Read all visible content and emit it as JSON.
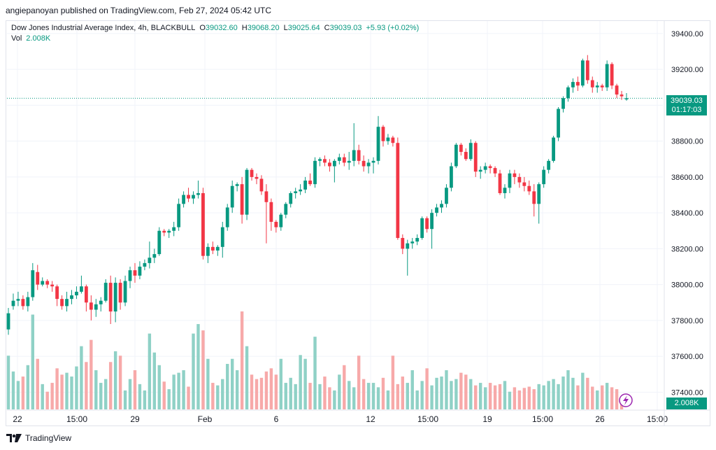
{
  "header": {
    "publish_line": "angiepanoyan published on TradingView.com, Feb 27, 2024 05:42 UTC"
  },
  "legend": {
    "symbol": "Dow Jones Industrial Average Index, 4h, BLACKBULL",
    "open_label": "O",
    "open": "39032.60",
    "high_label": "H",
    "high": "39068.20",
    "low_label": "L",
    "low": "39025.64",
    "close_label": "C",
    "close": "39039.03",
    "change": "+5.93 (+0.02%)",
    "vol_label": "Vol",
    "vol_value": "2.008K"
  },
  "price_axis": {
    "ticks": [
      "39400.00",
      "39200.00",
      "39000.00",
      "38800.00",
      "38600.00",
      "38400.00",
      "38200.00",
      "38000.00",
      "37800.00",
      "37600.00",
      "37400.00"
    ],
    "last_price": "39039.03",
    "countdown": "01:17:03",
    "volume_tag": "2.008K"
  },
  "time_axis": {
    "labels": [
      "22",
      "15:00",
      "29",
      "Feb",
      "6",
      "12",
      "15:00",
      "19",
      "15:00",
      "26",
      "15:00"
    ]
  },
  "footer": {
    "brand": "TradingView"
  },
  "colors": {
    "up": "#089981",
    "down": "#f23645",
    "up_vol": "#8fd1c6",
    "down_vol": "#f7a9a9",
    "grid": "#f0f3fa"
  },
  "chart_data": {
    "type": "candlestick",
    "title": "Dow Jones Industrial Average Index, 4h, BLACKBULL",
    "ylim": [
      37300,
      39470
    ],
    "y_ticks": [
      37400,
      37600,
      37800,
      38000,
      38200,
      38400,
      38600,
      38800,
      39000,
      39200,
      39400
    ],
    "x_labels": [
      "22",
      "15:00",
      "29",
      "Feb",
      "6",
      "12",
      "15:00",
      "19",
      "15:00",
      "26",
      "15:00"
    ],
    "last_price": 39039.03,
    "candles": [
      [
        37750,
        37870,
        37720,
        37840
      ],
      [
        37880,
        37950,
        37860,
        37910
      ],
      [
        37910,
        37960,
        37880,
        37920
      ],
      [
        37920,
        37940,
        37860,
        37880
      ],
      [
        37880,
        37960,
        37850,
        37930
      ],
      [
        37930,
        38120,
        37910,
        38080
      ],
      [
        38070,
        38110,
        37970,
        38000
      ],
      [
        38000,
        38040,
        37990,
        38020
      ],
      [
        38020,
        38030,
        37980,
        38000
      ],
      [
        38000,
        38020,
        37960,
        37990
      ],
      [
        37990,
        38000,
        37880,
        37920
      ],
      [
        37920,
        37940,
        37860,
        37880
      ],
      [
        37880,
        37960,
        37850,
        37920
      ],
      [
        37920,
        37970,
        37890,
        37940
      ],
      [
        37940,
        37990,
        37920,
        37960
      ],
      [
        37960,
        38050,
        37950,
        37990
      ],
      [
        37990,
        38000,
        37850,
        37900
      ],
      [
        37900,
        37940,
        37800,
        37860
      ],
      [
        37860,
        37920,
        37820,
        37890
      ],
      [
        37890,
        37930,
        37850,
        37910
      ],
      [
        37910,
        38030,
        37900,
        38010
      ],
      [
        38010,
        38050,
        37780,
        37850
      ],
      [
        37850,
        38040,
        37790,
        38010
      ],
      [
        38010,
        38030,
        37860,
        37900
      ],
      [
        37900,
        38050,
        37880,
        38020
      ],
      [
        38020,
        38100,
        37980,
        38080
      ],
      [
        38080,
        38120,
        38010,
        38050
      ],
      [
        38050,
        38130,
        38030,
        38100
      ],
      [
        38100,
        38140,
        38080,
        38120
      ],
      [
        38120,
        38240,
        38090,
        38150
      ],
      [
        38150,
        38200,
        38120,
        38170
      ],
      [
        38170,
        38320,
        38160,
        38300
      ],
      [
        38300,
        38310,
        38270,
        38290
      ],
      [
        38290,
        38310,
        38260,
        38300
      ],
      [
        38300,
        38350,
        38270,
        38320
      ],
      [
        38320,
        38480,
        38300,
        38450
      ],
      [
        38450,
        38520,
        38430,
        38500
      ],
      [
        38500,
        38540,
        38460,
        38480
      ],
      [
        38480,
        38520,
        38450,
        38500
      ],
      [
        38500,
        38580,
        38480,
        38510
      ],
      [
        38510,
        38540,
        38140,
        38160
      ],
      [
        38160,
        38230,
        38120,
        38210
      ],
      [
        38210,
        38240,
        38170,
        38190
      ],
      [
        38190,
        38220,
        38160,
        38210
      ],
      [
        38210,
        38350,
        38150,
        38320
      ],
      [
        38320,
        38450,
        38300,
        38430
      ],
      [
        38430,
        38580,
        38400,
        38550
      ],
      [
        38550,
        38570,
        38520,
        38560
      ],
      [
        38560,
        38600,
        38340,
        38390
      ],
      [
        38390,
        38650,
        38360,
        38640
      ],
      [
        38640,
        38650,
        38580,
        38600
      ],
      [
        38600,
        38620,
        38560,
        38590
      ],
      [
        38590,
        38610,
        38500,
        38520
      ],
      [
        38520,
        38560,
        38230,
        38460
      ],
      [
        38460,
        38480,
        38300,
        38350
      ],
      [
        38350,
        38360,
        38290,
        38320
      ],
      [
        38320,
        38400,
        38300,
        38390
      ],
      [
        38390,
        38460,
        38370,
        38450
      ],
      [
        38450,
        38520,
        38430,
        38510
      ],
      [
        38510,
        38540,
        38480,
        38520
      ],
      [
        38520,
        38560,
        38500,
        38530
      ],
      [
        38530,
        38600,
        38510,
        38580
      ],
      [
        38580,
        38620,
        38550,
        38560
      ],
      [
        38560,
        38710,
        38540,
        38690
      ],
      [
        38690,
        38710,
        38660,
        38700
      ],
      [
        38700,
        38720,
        38660,
        38680
      ],
      [
        38680,
        38700,
        38630,
        38660
      ],
      [
        38660,
        38700,
        38570,
        38690
      ],
      [
        38690,
        38730,
        38670,
        38710
      ],
      [
        38710,
        38730,
        38660,
        38680
      ],
      [
        38680,
        38740,
        38640,
        38690
      ],
      [
        38690,
        38900,
        38660,
        38750
      ],
      [
        38750,
        38780,
        38670,
        38690
      ],
      [
        38690,
        38720,
        38630,
        38660
      ],
      [
        38660,
        38700,
        38620,
        38680
      ],
      [
        38680,
        38710,
        38620,
        38690
      ],
      [
        38690,
        38940,
        38670,
        38880
      ],
      [
        38880,
        38890,
        38770,
        38800
      ],
      [
        38800,
        38840,
        38780,
        38820
      ],
      [
        38820,
        38830,
        38770,
        38790
      ],
      [
        38790,
        38820,
        38250,
        38260
      ],
      [
        38260,
        38280,
        38170,
        38200
      ],
      [
        38200,
        38250,
        38050,
        38230
      ],
      [
        38230,
        38260,
        38200,
        38240
      ],
      [
        38240,
        38280,
        38220,
        38260
      ],
      [
        38260,
        38380,
        38250,
        38370
      ],
      [
        38370,
        38380,
        38290,
        38310
      ],
      [
        38310,
        38420,
        38200,
        38400
      ],
      [
        38400,
        38450,
        38380,
        38430
      ],
      [
        38430,
        38470,
        38400,
        38450
      ],
      [
        38450,
        38560,
        38430,
        38540
      ],
      [
        38540,
        38680,
        38520,
        38660
      ],
      [
        38660,
        38790,
        38650,
        38780
      ],
      [
        38780,
        38790,
        38720,
        38740
      ],
      [
        38740,
        38760,
        38690,
        38700
      ],
      [
        38700,
        38810,
        38690,
        38790
      ],
      [
        38790,
        38800,
        38600,
        38630
      ],
      [
        38630,
        38660,
        38590,
        38640
      ],
      [
        38640,
        38680,
        38620,
        38660
      ],
      [
        38660,
        38670,
        38620,
        38650
      ],
      [
        38650,
        38660,
        38600,
        38620
      ],
      [
        38620,
        38640,
        38500,
        38510
      ],
      [
        38510,
        38560,
        38480,
        38540
      ],
      [
        38540,
        38640,
        38510,
        38620
      ],
      [
        38620,
        38640,
        38560,
        38600
      ],
      [
        38600,
        38620,
        38540,
        38570
      ],
      [
        38570,
        38600,
        38520,
        38550
      ],
      [
        38550,
        38580,
        38500,
        38520
      ],
      [
        38520,
        38560,
        38380,
        38450
      ],
      [
        38450,
        38570,
        38340,
        38560
      ],
      [
        38560,
        38660,
        38540,
        38640
      ],
      [
        38640,
        38700,
        38620,
        38690
      ],
      [
        38690,
        38830,
        38680,
        38820
      ],
      [
        38820,
        38990,
        38800,
        38980
      ],
      [
        38980,
        39050,
        38960,
        39040
      ],
      [
        39040,
        39110,
        39020,
        39100
      ],
      [
        39100,
        39150,
        39070,
        39130
      ],
      [
        39130,
        39160,
        39080,
        39110
      ],
      [
        39110,
        39260,
        39100,
        39250
      ],
      [
        39250,
        39280,
        39120,
        39140
      ],
      [
        39140,
        39160,
        39070,
        39100
      ],
      [
        39100,
        39130,
        39070,
        39110
      ],
      [
        39110,
        39120,
        39080,
        39100
      ],
      [
        39100,
        39250,
        39080,
        39230
      ],
      [
        39230,
        39240,
        39090,
        39110
      ],
      [
        39110,
        39120,
        39040,
        39060
      ],
      [
        39060,
        39080,
        39030,
        39050
      ],
      [
        39032.6,
        39068.2,
        39025.64,
        39039.03
      ]
    ],
    "volume": [
      85,
      60,
      45,
      52,
      70,
      150,
      80,
      40,
      28,
      42,
      65,
      55,
      58,
      52,
      68,
      100,
      75,
      110,
      62,
      42,
      48,
      75,
      92,
      85,
      30,
      48,
      62,
      40,
      30,
      120,
      90,
      70,
      44,
      32,
      55,
      58,
      62,
      36,
      120,
      135,
      125,
      80,
      42,
      38,
      48,
      72,
      80,
      62,
      155,
      100,
      55,
      48,
      50,
      60,
      65,
      55,
      80,
      42,
      50,
      40,
      86,
      80,
      42,
      115,
      40,
      52,
      35,
      30,
      55,
      70,
      45,
      35,
      85,
      48,
      42,
      42,
      35,
      50,
      30,
      85,
      40,
      52,
      42,
      62,
      30,
      45,
      65,
      38,
      50,
      52,
      62,
      45,
      48,
      58,
      55,
      48,
      38,
      42,
      35,
      42,
      38,
      40,
      45,
      28,
      35,
      30,
      34,
      36,
      32,
      40,
      38,
      45,
      48,
      40,
      52,
      62,
      50,
      38,
      58,
      50,
      36,
      30,
      38,
      42,
      35,
      32,
      20
    ]
  }
}
